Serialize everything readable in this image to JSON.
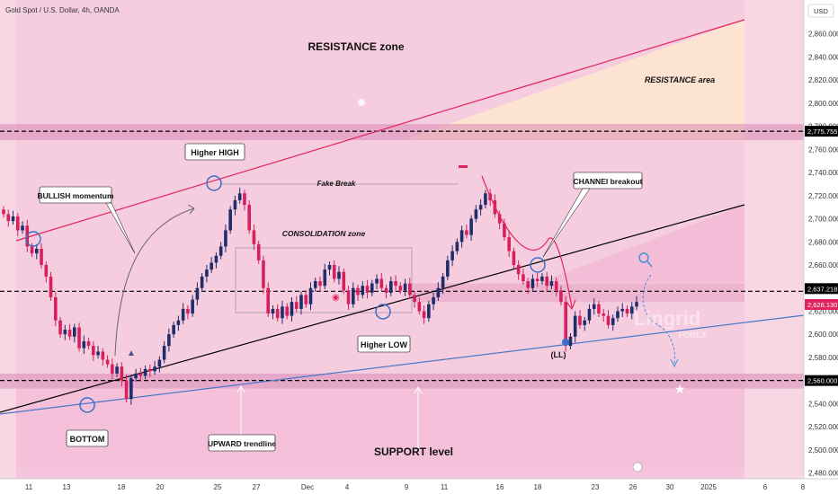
{
  "header": {
    "symbol_title": "Gold Spot / U.S. Dollar, 4h, OANDA",
    "currency": "USD"
  },
  "chart_data": {
    "type": "candlestick",
    "title": "Gold Spot / U.S. Dollar, 4h, OANDA",
    "ylabel": "USD",
    "ylim": [
      2470,
      2880
    ],
    "y_ticks": [
      "2,480.000",
      "2,500.000",
      "2,520.000",
      "2,540.000",
      "2,560.000",
      "2,580.000",
      "2,600.000",
      "2,620.000",
      "2,640.000",
      "2,660.000",
      "2,680.000",
      "2,700.000",
      "2,720.000",
      "2,740.000",
      "2,760.000",
      "2,780.000",
      "2,800.000",
      "2,820.000",
      "2,840.000",
      "2,860.000"
    ],
    "x_ticks": [
      "11",
      "13",
      "18",
      "20",
      "25",
      "27",
      "Dec",
      "4",
      "9",
      "11",
      "16",
      "18",
      "23",
      "26",
      "30",
      "2025",
      "6",
      "8"
    ],
    "price_labels": [
      {
        "value": 2775.755,
        "text": "2,775.755",
        "color": "#000000"
      },
      {
        "value": 2637.218,
        "text": "2,637.218",
        "color": "#000000"
      },
      {
        "value": 2628.13,
        "text": "2,628.130",
        "color": "#e0245e"
      },
      {
        "value": 2560.0,
        "text": "2,560.000",
        "color": "#000000"
      }
    ],
    "horizontal_levels": [
      2775.755,
      2637.218,
      2560.0
    ],
    "candles_close": [
      2704,
      2698,
      2702,
      2690,
      2694,
      2676,
      2670,
      2674,
      2660,
      2650,
      2632,
      2612,
      2600,
      2604,
      2598,
      2606,
      2588,
      2594,
      2590,
      2582,
      2585,
      2578,
      2574,
      2566,
      2572,
      2560,
      2544,
      2562,
      2566,
      2564,
      2570,
      2568,
      2572,
      2578,
      2590,
      2600,
      2608,
      2612,
      2622,
      2618,
      2630,
      2640,
      2650,
      2656,
      2662,
      2668,
      2676,
      2690,
      2708,
      2716,
      2722,
      2712,
      2690,
      2678,
      2664,
      2640,
      2618,
      2622,
      2614,
      2624,
      2616,
      2628,
      2622,
      2634,
      2626,
      2640,
      2646,
      2642,
      2656,
      2660,
      2648,
      2654,
      2638,
      2626,
      2640,
      2634,
      2642,
      2636,
      2644,
      2648,
      2640,
      2636,
      2646,
      2642,
      2638,
      2644,
      2634,
      2628,
      2620,
      2614,
      2626,
      2632,
      2640,
      2650,
      2664,
      2672,
      2680,
      2690,
      2686,
      2700,
      2708,
      2712,
      2722,
      2716,
      2704,
      2696,
      2684,
      2672,
      2660,
      2652,
      2646,
      2640,
      2648,
      2646,
      2650,
      2642,
      2646,
      2638,
      2628,
      2590,
      2598,
      2616,
      2608,
      2612,
      2622,
      2626,
      2618,
      2616,
      2608,
      2614,
      2620,
      2622,
      2618,
      2624,
      2628
    ],
    "annotations": {
      "resistance_zone": "RESISTANCE zone",
      "resistance_area": "RESISTANCE area",
      "higher_high": "Higher HIGH",
      "bullish_momentum": "BULLISH momentum",
      "fake_break": "Fake Break",
      "consolidation_zone": "CONSOLIDATION zone",
      "channel_breakout": "CHANNEl breakout",
      "higher_low": "Higher LOW",
      "ll": "(LL)",
      "bottom": "BOTTOM",
      "upward_trendline": "UPWARD trendline",
      "support_level": "SUPPORT level",
      "watermark_main": "Lingrid",
      "watermark_sub": "FOREX"
    }
  }
}
